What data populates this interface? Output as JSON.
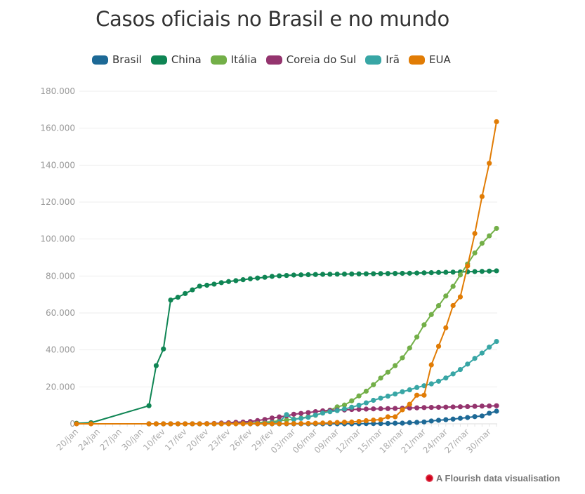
{
  "chart_data": {
    "type": "line",
    "title": "Casos oficiais no Brasil e no mundo",
    "xlabel": "",
    "ylabel": "",
    "ylim": [
      0,
      180000
    ],
    "yticks": [
      0,
      20000,
      40000,
      60000,
      80000,
      100000,
      120000,
      140000,
      160000,
      180000
    ],
    "ytick_labels": [
      "0",
      "20.000",
      "40.000",
      "60.000",
      "80.000",
      "100.000",
      "120.000",
      "140.000",
      "160.000",
      "180.000"
    ],
    "grid": true,
    "legend": "top",
    "categories": [
      "20/jan",
      "",
      "",
      "24/jan",
      "",
      "",
      "27/jan",
      "",
      "",
      "30/jan",
      "",
      "",
      "10/fev",
      "",
      "",
      "17/fev",
      "",
      "",
      "20/fev",
      "",
      "",
      "23/fev",
      "",
      "",
      "26/fev",
      "",
      "",
      "29/fev",
      "",
      "",
      "03/mar",
      "",
      "",
      "06/mar",
      "",
      "",
      "09/mar",
      "",
      "",
      "12/mar",
      "",
      "",
      "15/mar",
      "",
      "",
      "18/mar",
      "",
      "",
      "21/mar",
      "",
      "",
      "24/mar",
      "",
      "",
      "27/mar",
      "",
      "",
      "30/mar",
      ""
    ],
    "series": [
      {
        "name": "Brasil",
        "color": "#1d6996",
        "values": [
          null,
          null,
          null,
          null,
          null,
          null,
          null,
          null,
          null,
          null,
          null,
          null,
          null,
          null,
          null,
          null,
          null,
          null,
          null,
          null,
          null,
          null,
          null,
          null,
          1,
          1,
          1,
          2,
          2,
          2,
          2,
          4,
          4,
          13,
          13,
          20,
          25,
          31,
          38,
          52,
          151,
          151,
          162,
          200,
          321,
          372,
          621,
          793,
          1021,
          1546,
          1924,
          2247,
          2554,
          2985,
          3417,
          3904,
          4256,
          5717,
          6836
        ]
      },
      {
        "name": "China",
        "color": "#0f8554",
        "values": [
          278,
          null,
          580,
          null,
          null,
          null,
          null,
          null,
          null,
          null,
          9800,
          31500,
          40500,
          67000,
          68500,
          70500,
          72500,
          74500,
          75000,
          75600,
          76400,
          77000,
          77500,
          78000,
          78500,
          78900,
          79300,
          79800,
          80100,
          80300,
          80500,
          80600,
          80700,
          80800,
          80900,
          80950,
          81000,
          81050,
          81100,
          81150,
          81200,
          81250,
          81300,
          81350,
          81400,
          81450,
          81500,
          81600,
          81700,
          81800,
          81900,
          82000,
          82100,
          82200,
          82300,
          82400,
          82500,
          82650,
          82800
        ]
      },
      {
        "name": "Itália",
        "color": "#73af48",
        "values": [
          null,
          null,
          null,
          null,
          null,
          null,
          null,
          null,
          null,
          null,
          3,
          3,
          3,
          3,
          3,
          3,
          3,
          3,
          3,
          20,
          62,
          155,
          229,
          322,
          453,
          655,
          888,
          1128,
          1694,
          2036,
          2502,
          3089,
          3858,
          4636,
          5883,
          7375,
          9172,
          10149,
          12462,
          15113,
          17660,
          21157,
          24747,
          27980,
          31506,
          35713,
          41035,
          47021,
          53578,
          59138,
          63927,
          69176,
          74386,
          80589,
          86498,
          92472,
          97689,
          101739,
          105792
        ]
      },
      {
        "name": "Coreia do Sul",
        "color": "#94346e",
        "values": [
          null,
          null,
          null,
          null,
          null,
          null,
          null,
          null,
          null,
          null,
          11,
          12,
          15,
          24,
          28,
          28,
          30,
          31,
          104,
          204,
          433,
          602,
          833,
          977,
          1261,
          1766,
          2337,
          3150,
          3736,
          4335,
          5186,
          5621,
          6088,
          6593,
          7041,
          7314,
          7478,
          7513,
          7755,
          7869,
          7979,
          8086,
          8162,
          8236,
          8320,
          8413,
          8565,
          8652,
          8799,
          8897,
          8961,
          9037,
          9137,
          9241,
          9332,
          9478,
          9583,
          9661,
          9786
        ]
      },
      {
        "name": "Irã",
        "color": "#38a6a5",
        "values": [
          null,
          null,
          null,
          null,
          null,
          null,
          null,
          null,
          null,
          null,
          0,
          0,
          0,
          0,
          0,
          0,
          0,
          0,
          5,
          18,
          28,
          43,
          61,
          95,
          139,
          245,
          388,
          593,
          978,
          5000,
          2336,
          2922,
          3513,
          4747,
          5823,
          6566,
          7161,
          8042,
          9000,
          10075,
          11364,
          12729,
          13938,
          14991,
          16169,
          17361,
          18407,
          19644,
          20610,
          21638,
          23049,
          24811,
          27017,
          29406,
          32332,
          35408,
          38309,
          41495,
          44605
        ]
      },
      {
        "name": "EUA",
        "color": "#e17c05",
        "values": [
          1,
          null,
          1,
          null,
          null,
          null,
          null,
          null,
          null,
          null,
          6,
          8,
          11,
          13,
          13,
          15,
          15,
          15,
          15,
          35,
          35,
          35,
          53,
          57,
          60,
          60,
          62,
          70,
          75,
          100,
          120,
          160,
          220,
          320,
          430,
          540,
          700,
          900,
          1000,
          1300,
          1700,
          2000,
          2300,
          3800,
          3800,
          7600,
          10600,
          15500,
          15500,
          31900,
          42000,
          52000,
          64000,
          68700,
          85400,
          103000,
          123000,
          141000,
          163500
        ]
      }
    ]
  },
  "credit": "A Flourish data visualisation"
}
